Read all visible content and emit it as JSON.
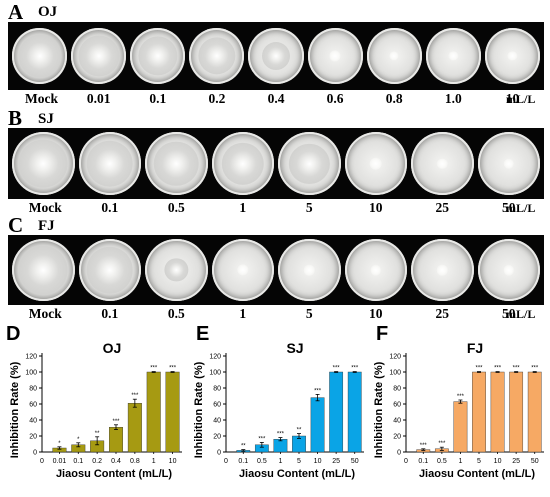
{
  "rows": [
    {
      "letter": "A",
      "title": "OJ",
      "unit": "mL/L",
      "labels": [
        "Mock",
        "0.01",
        "0.1",
        "0.2",
        "0.4",
        "0.6",
        "0.8",
        "1.0",
        "10"
      ],
      "growth": [
        1,
        0.95,
        0.9,
        0.85,
        0.6,
        0.15,
        0.1,
        0.1,
        0.1
      ]
    },
    {
      "letter": "B",
      "title": "SJ",
      "unit": "mL/L",
      "labels": [
        "Mock",
        "0.1",
        "0.5",
        "1",
        "5",
        "10",
        "25",
        "50"
      ],
      "growth": [
        1,
        0.95,
        0.9,
        0.85,
        0.8,
        0.15,
        0.1,
        0.1
      ]
    },
    {
      "letter": "C",
      "title": "FJ",
      "unit": "mL/L",
      "labels": [
        "Mock",
        "0.1",
        "0.5",
        "1",
        "5",
        "10",
        "25",
        "50"
      ],
      "growth": [
        1,
        0.95,
        0.4,
        0.12,
        0.1,
        0.1,
        0.1,
        0.1
      ]
    }
  ],
  "chart_data": [
    {
      "type": "bar",
      "panel": "D",
      "title": "OJ",
      "xlabel": "Jiaosu Content (mL/L)",
      "ylabel": "Inhibition Rate (%)",
      "ylim": [
        0,
        120
      ],
      "yticks": [
        0,
        20,
        40,
        60,
        80,
        100,
        120
      ],
      "color": "#a69a12",
      "x_zero_label": "0",
      "categories": [
        "0.01",
        "0.1",
        "0.2",
        "0.4",
        "0.8",
        "1",
        "10"
      ],
      "values": [
        5,
        9,
        14,
        31,
        61,
        100,
        100
      ],
      "errors": [
        1.5,
        2.5,
        5,
        3,
        5,
        0.5,
        0.5
      ],
      "sig": [
        "*",
        "*",
        "**",
        "***",
        "***",
        "***",
        "***"
      ]
    },
    {
      "type": "bar",
      "panel": "E",
      "title": "SJ",
      "xlabel": "Jiaosu Content (mL/L)",
      "ylabel": "Inhibition Rate (%)",
      "ylim": [
        0,
        120
      ],
      "yticks": [
        0,
        20,
        40,
        60,
        80,
        100,
        120
      ],
      "color": "#0aa4e6",
      "x_zero_label": "0",
      "categories": [
        "0.1",
        "0.5",
        "1",
        "5",
        "10",
        "25",
        "50"
      ],
      "values": [
        2,
        9,
        16,
        20,
        68,
        100,
        100
      ],
      "errors": [
        1,
        3,
        2,
        3,
        4,
        0.5,
        0.5
      ],
      "sig": [
        "**",
        "***",
        "***",
        "**",
        "***",
        "***",
        "***"
      ]
    },
    {
      "type": "bar",
      "panel": "F",
      "title": "FJ",
      "xlabel": "Jiaosu Content (mL/L)",
      "ylabel": "Inhibition Rate (%)",
      "ylim": [
        0,
        120
      ],
      "yticks": [
        0,
        20,
        40,
        60,
        80,
        100,
        120
      ],
      "color": "#f6a964",
      "x_zero_label": "0",
      "categories": [
        "0.1",
        "0.5",
        "1",
        "5",
        "10",
        "25",
        "50"
      ],
      "values": [
        3,
        4,
        63,
        100,
        100,
        100,
        100
      ],
      "errors": [
        1,
        2,
        2,
        0.5,
        0.5,
        0.5,
        0.5
      ],
      "sig": [
        "***",
        "***",
        "***",
        "***",
        "***",
        "***",
        "***"
      ]
    }
  ]
}
